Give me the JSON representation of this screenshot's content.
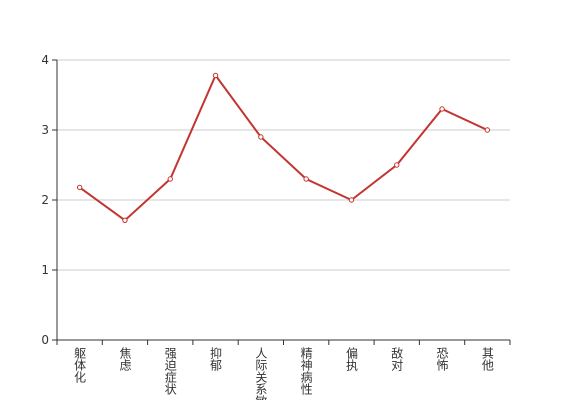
{
  "chart_data": {
    "type": "line",
    "categories": [
      "躯体化",
      "焦虑",
      "强迫症状",
      "抑郁",
      "人际关系敏感",
      "精神病性",
      "偏执",
      "敌对",
      "恐怖",
      "其他"
    ],
    "series": [
      {
        "color": "#c23531",
        "values": [
          2.18,
          1.71,
          2.3,
          3.78,
          2.9,
          2.3,
          2.0,
          2.5,
          3.3,
          3.0
        ]
      }
    ],
    "ylim": [
      0,
      4
    ],
    "yticks": [
      0,
      1,
      2,
      3,
      4
    ],
    "grid": true
  }
}
